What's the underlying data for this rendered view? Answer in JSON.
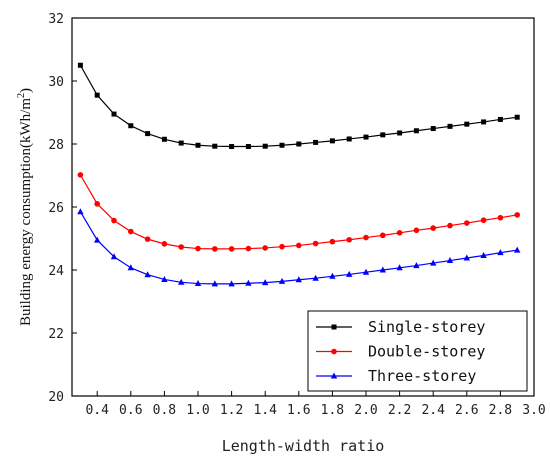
{
  "chart_data": {
    "type": "line",
    "xlabel": "Length-width ratio",
    "ylabel": "Building energy consumption(kWh/m",
    "ylabel_sup": "2",
    "ylabel_close": ")",
    "xlim": [
      0.25,
      3.0
    ],
    "ylim": [
      20,
      32
    ],
    "xticks": [
      "0.4",
      "0.6",
      "0.8",
      "1.0",
      "1.2",
      "1.4",
      "1.6",
      "1.8",
      "2.0",
      "2.2",
      "2.4",
      "2.6",
      "2.8",
      "3.0"
    ],
    "yticks": [
      "20",
      "22",
      "24",
      "26",
      "28",
      "30",
      "32"
    ],
    "legend_position": "bottom-right",
    "x": [
      0.3,
      0.4,
      0.5,
      0.6,
      0.7,
      0.8,
      0.9,
      1.0,
      1.1,
      1.2,
      1.3,
      1.4,
      1.5,
      1.6,
      1.7,
      1.8,
      1.9,
      2.0,
      2.1,
      2.2,
      2.3,
      2.4,
      2.5,
      2.6,
      2.7,
      2.8,
      2.9
    ],
    "series": [
      {
        "name": "Single-storey",
        "color": "#000000",
        "marker": "square",
        "values": [
          30.5,
          29.55,
          28.95,
          28.58,
          28.33,
          28.15,
          28.03,
          27.96,
          27.93,
          27.92,
          27.92,
          27.93,
          27.96,
          28.0,
          28.05,
          28.1,
          28.16,
          28.22,
          28.29,
          28.35,
          28.42,
          28.49,
          28.56,
          28.63,
          28.7,
          28.78,
          28.85
        ]
      },
      {
        "name": "Double-storey",
        "color": "#ff0000",
        "marker": "circle",
        "values": [
          27.02,
          26.1,
          25.57,
          25.22,
          24.98,
          24.83,
          24.73,
          24.68,
          24.67,
          24.67,
          24.68,
          24.7,
          24.74,
          24.78,
          24.84,
          24.9,
          24.96,
          25.03,
          25.1,
          25.18,
          25.26,
          25.33,
          25.41,
          25.49,
          25.58,
          25.66,
          25.75
        ]
      },
      {
        "name": "Three-storey",
        "color": "#0000ff",
        "marker": "triangle",
        "values": [
          25.85,
          24.95,
          24.42,
          24.07,
          23.85,
          23.7,
          23.61,
          23.57,
          23.56,
          23.56,
          23.58,
          23.6,
          23.64,
          23.69,
          23.74,
          23.8,
          23.86,
          23.93,
          24.0,
          24.07,
          24.14,
          24.22,
          24.3,
          24.38,
          24.46,
          24.55,
          24.63
        ]
      }
    ]
  }
}
